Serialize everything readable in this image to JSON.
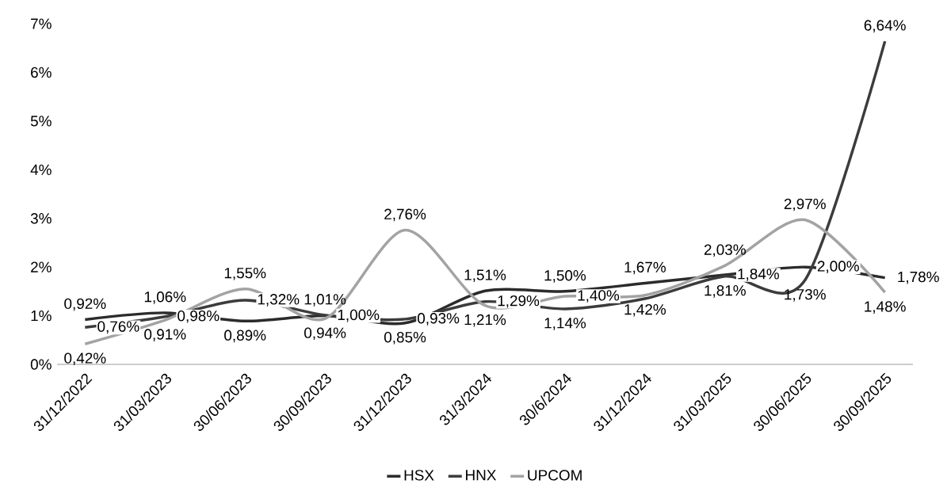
{
  "chart_data": {
    "type": "line",
    "categories": [
      "31/12/2022",
      "31/03/2023",
      "30/06/2023",
      "30/09/2023",
      "31/12/2023",
      "31/3/2024",
      "30/6/2024",
      "31/12/2024",
      "31/03/2025",
      "30/06/2025",
      "30/09/2025"
    ],
    "series": [
      {
        "name": "HSX",
        "color": "#2b2b2b",
        "values": [
          0.92,
          1.06,
          0.89,
          1.0,
          0.85,
          1.51,
          1.5,
          1.67,
          1.84,
          2.0,
          1.78
        ],
        "value_labels": [
          "0,92%",
          "1,06%",
          "0,89%",
          "1,00%",
          "0,85%",
          "1,51%",
          "1,50%",
          "1,67%",
          "1,84%",
          "2,00%",
          "1,78%"
        ]
      },
      {
        "name": "HNX",
        "color": "#3c3c3c",
        "values": [
          0.76,
          0.98,
          1.32,
          1.01,
          0.93,
          1.29,
          1.14,
          1.35,
          1.81,
          1.73,
          6.64
        ],
        "value_labels": [
          "0,76%",
          "0,98%",
          "1,32%",
          "1,01%",
          "0,93%",
          "1,29%",
          "1,14%",
          null,
          "1,81%",
          "1,73%",
          "6,64%"
        ]
      },
      {
        "name": "UPCOM",
        "color": "#a3a3a3",
        "values": [
          0.42,
          0.91,
          1.55,
          0.94,
          2.76,
          1.21,
          1.4,
          1.42,
          2.03,
          2.97,
          1.48
        ],
        "value_labels": [
          "0,42%",
          "0,91%",
          "1,55%",
          "0,94%",
          "2,76%",
          "1,21%",
          "1,40%",
          "1,42%",
          "2,03%",
          "2,97%",
          "1,48%"
        ]
      }
    ],
    "ylim": [
      0,
      7
    ],
    "yticks": [
      {
        "value": 0,
        "label": "0%"
      },
      {
        "value": 1,
        "label": "1%"
      },
      {
        "value": 2,
        "label": "2%"
      },
      {
        "value": 3,
        "label": "3%"
      },
      {
        "value": 4,
        "label": "4%"
      },
      {
        "value": 5,
        "label": "5%"
      },
      {
        "value": 6,
        "label": "6%"
      },
      {
        "value": 7,
        "label": "7%"
      }
    ],
    "legend": "bottom",
    "marker": "none",
    "line_style": "solid",
    "grid": false
  }
}
